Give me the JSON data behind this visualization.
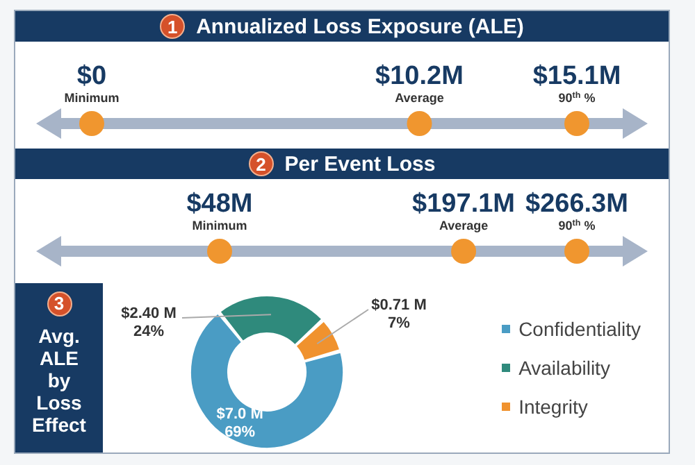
{
  "chart_data": [
    {
      "type": "other",
      "title": "Annualized Loss Exposure (ALE)",
      "annotations": [
        "1"
      ],
      "categories": [
        "Minimum",
        "Average",
        "90$^{th}$ %"
      ],
      "values": [
        0,
        10.2,
        15.1
      ],
      "value_labels": [
        "$0",
        "$10.2M",
        "$15.1M"
      ],
      "color": "#f0962f"
    },
    {
      "type": "other",
      "title": "Per Event Loss",
      "annotations": [
        "2"
      ],
      "categories": [
        "Minimum",
        "Average",
        "90$^{th}$ %"
      ],
      "values": [
        48,
        197.1,
        266.3
      ],
      "value_labels": [
        "$48M",
        "$197.1M",
        "$266.3M"
      ],
      "color": "#f0962f"
    },
    {
      "type": "donut",
      "title": "Avg. ALE by Loss Effect",
      "annotations": [
        "3"
      ],
      "categories": [
        "Confidentiality",
        "Availability",
        "Integrity"
      ],
      "values": [
        7.0,
        2.4,
        0.71
      ],
      "colors": [
        "#4a9cc4",
        "#2f8a7c",
        "#f0922e"
      ],
      "value_labels": [
        "$7.0 M\n69%",
        "$2.40 M\n24%",
        "$0.71 M\n7%"
      ],
      "legend": "right"
    }
  ]
}
